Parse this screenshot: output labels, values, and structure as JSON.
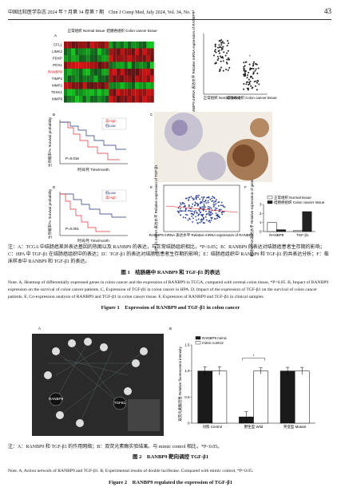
{
  "header": {
    "journal": "中国比较医学杂志 2024 年 7 月第 34 卷第 7 期　Chin J Comp Med, July 2024, Vol. 34, No. 7",
    "page": "43"
  },
  "figure1": {
    "panel_a": {
      "label": "A",
      "group_normal": "正常组织\nNormal tissue",
      "group_cancer": "结肠癌组织\nColon cancer tissue",
      "genes": [
        "CFL1",
        "LIMK2",
        "PDXP",
        "PDX1",
        "RANBP9",
        "TIMP2",
        "MMP2",
        "TESK1",
        "MMP9"
      ],
      "dot_ylabel": "RANBP9 mRNA 表达水平\nRelative mRNA expression of RANBP9",
      "dot_x": [
        "正常组织\nNormal tissue",
        "结肠癌组织\nColon cancer tissue"
      ],
      "sig": "*"
    },
    "panel_b": {
      "label": "B",
      "legend": [
        "高High",
        "低Low"
      ],
      "ylabel": "生存概率/%\nSurvival probability",
      "xlabel": "时间/月 Time/month",
      "p": "P=0.016"
    },
    "panel_c": {
      "label": "C"
    },
    "panel_d": {
      "label": "D",
      "legend": [
        "低Low",
        "高High"
      ],
      "ylabel": "生存概率/%\nSurvival probability",
      "xlabel": "时间/月 Time/month",
      "p": "P=0.001"
    },
    "panel_e": {
      "label": "E",
      "ylabel": "TGF-β1 mRNA 表达水平\nRelative expression of TGF-β1",
      "xlabel": "RANBP9 mRNA 表达水平\nRelative mRNA expression of RANBP9"
    },
    "panel_f": {
      "label": "F",
      "type": "bar",
      "ylabel": "相对mRNA表达水平\nRelative expression of gene",
      "categories": [
        "RANBP9",
        "TGF-β1"
      ],
      "series": [
        {
          "name": "正常组织 Normal tissue",
          "color": "#ffffff",
          "values": [
            1.0,
            0.1
          ]
        },
        {
          "name": "结肠癌组织 Colon cancer tissue",
          "color": "#222222",
          "values": [
            0.2,
            2.2
          ]
        }
      ],
      "ylim": [
        0,
        3
      ],
      "yticks": [
        0,
        1,
        2,
        3
      ]
    },
    "note_cn": "注：A：TCGA 中结肠癌差异表达基因的热图以及 RANBP9 的表达，与正常结肠组织相比，*P<0.05；B：RANBP9 的表达对结肠癌患者生存期的影响；C：HPA 中 TGF-β1 在结肠癌组织中的表达；D：TGF-β1 的表达对结肠癌患者生存期的影响；E：结肠癌组织中 RANBP9 和 TGF-β1 的共表达分析；F：临床样本中 RANBP9 和 TGF-β1 的表达。",
    "title_cn": "图 1　结肠癌中 RANBP9 和 TGF-β1 的表达",
    "note_en": "Note. A, Heatmap of differentially expressed genes in colon cancer and the expression of RANBP9 in TCGA, compared with normal colon tissue, *P<0.05. B, Impact of RANBP9 expression on the survival of colon cancer patients. C, Expression of TGF-β1 in colon cancer in HPA. D, Impact of the expression of TGF-β1 on the survival of colon cancer patients. E, Co-expression analysis of RANBP9 and TGF-β1 in colon cancer tissue. F, Expression of RANBP9 and TGF-β1 in clinical samples.",
    "title_en": "Figure 1　Expression of RANBP9 and TGF-β1 in colon cancer"
  },
  "figure2": {
    "panel_a": {
      "label": "A",
      "nodes": [
        "RANBP9",
        "TGFB1"
      ]
    },
    "panel_b": {
      "label": "B",
      "type": "bar",
      "ylabel": "双荧光素酶活性\nRelative fluorescence intensity",
      "categories": [
        "对照\nControl",
        "野生型\nWild",
        "突变型\nMutant"
      ],
      "series": [
        {
          "name": "RANBP9 mimic",
          "color": "#1a1a1a",
          "values": [
            1.0,
            0.12,
            1.0
          ],
          "errors": [
            0.08,
            0.1,
            0.07
          ]
        },
        {
          "name": "mimic control",
          "color": "#ffffff",
          "values": [
            1.0,
            1.0,
            1.0
          ],
          "errors": [
            0.08,
            0.06,
            0.07
          ]
        }
      ],
      "ylim": [
        0,
        1.5
      ],
      "yticks": [
        0,
        {
          "value": 0.5,
          "label": "0.5"
        },
        {
          "value": 1,
          "label": "1.0"
        },
        {
          "value": 1.5,
          "label": "1.5"
        }
      ],
      "sig": "*"
    },
    "note_cn": "注：A：RANBP9 和 TGF-β1 的作用网络；B：双荧光素酶实验结果。与 mimic control 相比，*P<0.05。",
    "title_cn": "图 2　RANBP9 靶向调控 TGF-β1",
    "note_en": "Note. A, Action network of RANBP9 and TGF-β1. B, Experimental results of double luciferase. Compared with mimic control, *P<0.05.",
    "title_en": "Figure 2　RANBP9 regulated the expression of TGF-β1"
  }
}
